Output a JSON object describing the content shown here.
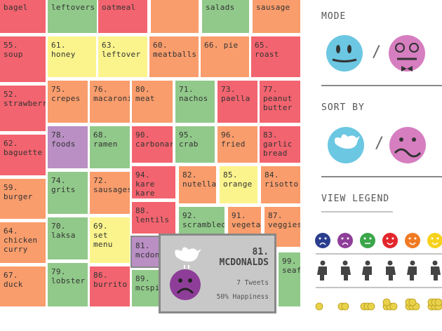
{
  "tiles": [
    "bagel",
    "leftovers",
    "oatmeal",
    "",
    "salads",
    "sausage",
    "55. soup",
    "61. honey",
    "63. leftover",
    "60. meatballs",
    "66. pie",
    "65. roast",
    "52. strawberr",
    "75. crepes",
    "76. macaroni",
    "80. meat",
    "71. nachos",
    "73. paella",
    "77. peanut butter",
    "62. baguette",
    "78. foods",
    "68. ramen",
    "90. carbonar",
    "95. crab",
    "96. fried",
    "83. garlic bread",
    "59. burger",
    "74. grits",
    "72. sausages",
    "94. kare kare",
    "82. nutella",
    "85. orange",
    "84. risotto",
    "88. lentils",
    "92. scrambled",
    "91. vegetab",
    "87. veggies",
    "64. chicken curry",
    "70. laksa",
    "69. set menu",
    "81. mcdon",
    "67. duck",
    "79. lobster",
    "86. burrito",
    "89. mcspi",
    "99. seafo"
  ],
  "tooltip": {
    "title": "81. MCDONALDS",
    "tweets": "7 Tweets",
    "happiness": "50% Happiness"
  },
  "panel": {
    "mode": "MODE",
    "sort_by": "SORT BY",
    "view_legend": "VIEW LEGEND",
    "separator": "/"
  }
}
